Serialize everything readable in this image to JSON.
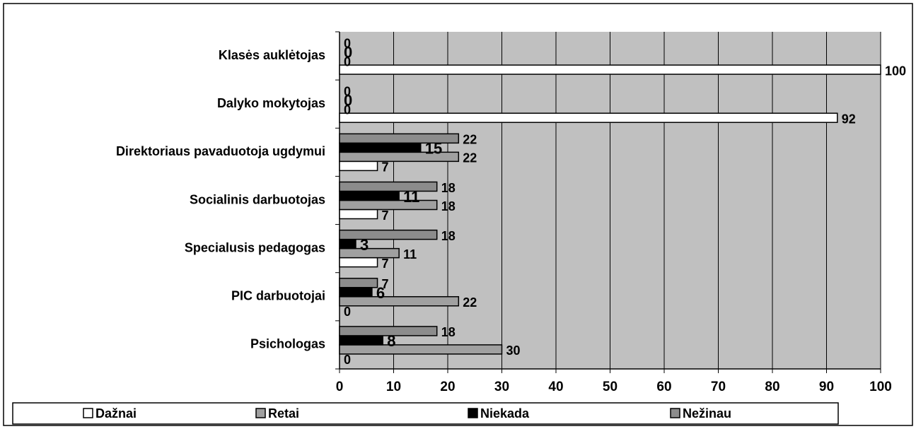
{
  "chart_data": {
    "type": "bar",
    "orientation": "horizontal",
    "categories": [
      "Klasės auklėtojas",
      "Dalyko mokytojas",
      "Direktoriaus pavaduotoja ugdymui",
      "Socialinis darbuotojas",
      "Specialusis pedagogas",
      "PIC darbuotojai",
      "Psichologas"
    ],
    "series": [
      {
        "name": "Dažnai",
        "color": "#ffffff",
        "values": [
          100,
          92,
          7,
          7,
          7,
          0,
          0
        ]
      },
      {
        "name": "Retai",
        "color": "#a0a0a0",
        "values": [
          0,
          0,
          22,
          18,
          11,
          22,
          30
        ]
      },
      {
        "name": "Niekada",
        "color": "#000000",
        "values": [
          0,
          0,
          15,
          11,
          3,
          6,
          8
        ]
      },
      {
        "name": "Nežinau",
        "color": "#8c8c8c",
        "values": [
          0,
          0,
          22,
          18,
          18,
          7,
          18
        ]
      }
    ],
    "xlim": [
      0,
      100
    ],
    "xticks": [
      0,
      10,
      20,
      30,
      40,
      50,
      60,
      70,
      80,
      90,
      100
    ],
    "grid": true,
    "plot_background": "#c0c0c0",
    "legend": "bottom"
  }
}
